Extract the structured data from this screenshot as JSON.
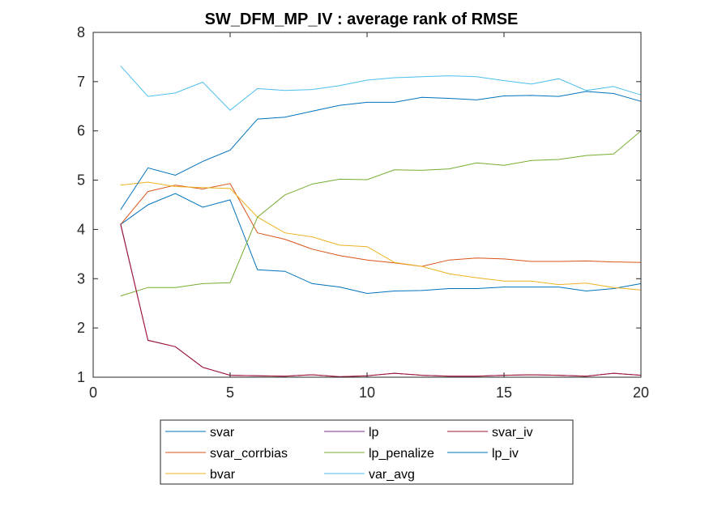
{
  "chart_data": {
    "type": "line",
    "title": "SW_DFM_MP_IV : average rank of RMSE",
    "xlabel": "",
    "ylabel": "",
    "xlim": [
      0,
      20
    ],
    "ylim": [
      1,
      8
    ],
    "x_ticks": [
      0,
      5,
      10,
      15,
      20
    ],
    "y_ticks": [
      1,
      2,
      3,
      4,
      5,
      6,
      7,
      8
    ],
    "grid": false,
    "legend_position": "bottom",
    "x": [
      1,
      2,
      3,
      4,
      5,
      6,
      7,
      8,
      9,
      10,
      11,
      12,
      13,
      14,
      15,
      16,
      17,
      18,
      19,
      20
    ],
    "series": [
      {
        "name": "svar",
        "color": "#0072BD",
        "values": [
          4.1,
          4.5,
          4.73,
          4.45,
          4.6,
          3.18,
          3.15,
          2.9,
          2.83,
          2.7,
          2.75,
          2.76,
          2.8,
          2.8,
          2.83,
          2.83,
          2.83,
          2.75,
          2.8,
          2.9
        ]
      },
      {
        "name": "svar_corrbias",
        "color": "#D95319",
        "values": [
          4.1,
          4.77,
          4.9,
          4.82,
          4.93,
          3.93,
          3.8,
          3.6,
          3.47,
          3.38,
          3.32,
          3.25,
          3.38,
          3.42,
          3.4,
          3.35,
          3.35,
          3.36,
          3.34,
          3.33
        ]
      },
      {
        "name": "bvar",
        "color": "#EDB120",
        "values": [
          4.9,
          4.96,
          4.87,
          4.85,
          4.83,
          4.25,
          3.93,
          3.85,
          3.68,
          3.65,
          3.33,
          3.25,
          3.1,
          3.02,
          2.95,
          2.95,
          2.88,
          2.91,
          2.82,
          2.77
        ]
      },
      {
        "name": "lp",
        "color": "#7E2F8E",
        "values": [
          4.12,
          1.75,
          1.62,
          1.2,
          1.04,
          1.03,
          1.02,
          1.05,
          1.01,
          1.03,
          1.08,
          1.04,
          1.02,
          1.02,
          1.04,
          1.05,
          1.04,
          1.02,
          1.08,
          1.04
        ]
      },
      {
        "name": "lp_penalize",
        "color": "#77AC30",
        "values": [
          2.65,
          2.82,
          2.82,
          2.9,
          2.92,
          4.25,
          4.7,
          4.92,
          5.02,
          5.01,
          5.21,
          5.2,
          5.23,
          5.35,
          5.3,
          5.4,
          5.42,
          5.5,
          5.53,
          6.0
        ]
      },
      {
        "name": "var_avg",
        "color": "#4DBEEE",
        "values": [
          7.32,
          6.7,
          6.77,
          6.99,
          6.42,
          6.86,
          6.82,
          6.84,
          6.92,
          7.03,
          7.08,
          7.1,
          7.12,
          7.1,
          7.02,
          6.95,
          7.06,
          6.82,
          6.9,
          6.73
        ]
      },
      {
        "name": "svar_iv",
        "color": "#A2142F",
        "values": [
          4.1,
          1.75,
          1.62,
          1.2,
          1.04,
          1.03,
          1.02,
          1.05,
          1.01,
          1.03,
          1.08,
          1.04,
          1.02,
          1.02,
          1.04,
          1.05,
          1.04,
          1.02,
          1.08,
          1.04
        ]
      },
      {
        "name": "lp_iv",
        "color": "#0072BD",
        "values": [
          4.4,
          5.25,
          5.1,
          5.38,
          5.61,
          6.24,
          6.28,
          6.4,
          6.52,
          6.58,
          6.58,
          6.68,
          6.66,
          6.63,
          6.71,
          6.72,
          6.7,
          6.8,
          6.76,
          6.6
        ]
      }
    ],
    "legend": {
      "columns": [
        [
          "svar",
          "svar_corrbias",
          "bvar"
        ],
        [
          "lp",
          "lp_penalize",
          "var_avg"
        ],
        [
          "svar_iv",
          "lp_iv"
        ]
      ]
    }
  }
}
